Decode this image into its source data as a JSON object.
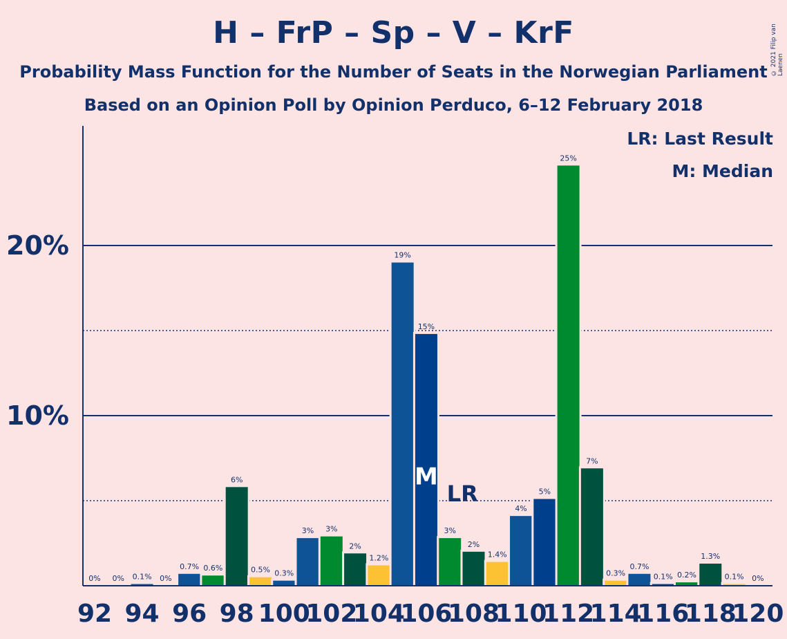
{
  "header": {
    "title": "H – FrP – Sp – V – KrF",
    "subtitle1": "Probability Mass Function for the Number of Seats in the Norwegian Parliament",
    "subtitle2": "Based on an Opinion Poll by Opinion Perduco, 6–12 February 2018",
    "copyright": "© 2021 Filip van Laenen"
  },
  "legend": {
    "lr": "LR: Last Result",
    "median": "M: Median"
  },
  "colors": {
    "background": "#fde4e4",
    "text": "#12306a",
    "H": "#0d5396",
    "FrP": "#003f8c",
    "Sp": "#008a30",
    "KrF": "#fdc233",
    "V": "#00523f"
  },
  "chart_data": {
    "type": "bar",
    "x": [
      92,
      93,
      94,
      95,
      96,
      97,
      98,
      99,
      100,
      101,
      102,
      103,
      104,
      105,
      106,
      107,
      108,
      109,
      110,
      111,
      112,
      113,
      114,
      115,
      116,
      117,
      118,
      119,
      120
    ],
    "values": [
      0,
      0,
      0.1,
      0,
      0.7,
      0.6,
      5.8,
      0.5,
      0.3,
      2.8,
      2.9,
      1.9,
      1.2,
      19.0,
      14.8,
      2.8,
      2.0,
      1.4,
      4.1,
      5.1,
      24.7,
      6.9,
      0.3,
      0.7,
      0.1,
      0.2,
      1.3,
      0.1,
      0
    ],
    "labels": [
      "0%",
      "0%",
      "0.1%",
      "0%",
      "0.7%",
      "0.6%",
      "6%",
      "0.5%",
      "0.3%",
      "3%",
      "3%",
      "2%",
      "1.2%",
      "19%",
      "15%",
      "3%",
      "2%",
      "1.4%",
      "4%",
      "5%",
      "25%",
      "7%",
      "0.3%",
      "0.7%",
      "0.1%",
      "0.2%",
      "1.3%",
      "0.1%",
      "0%"
    ],
    "bar_colors": [
      "H",
      "H",
      "H",
      "H",
      "H",
      "Sp",
      "V",
      "KrF",
      "H",
      "H",
      "Sp",
      "V",
      "KrF",
      "H",
      "FrP",
      "Sp",
      "V",
      "KrF",
      "H",
      "FrP",
      "Sp",
      "V",
      "KrF",
      "H",
      "FrP",
      "Sp",
      "V",
      "KrF",
      "H"
    ],
    "x_ticks": [
      92,
      94,
      96,
      98,
      100,
      102,
      104,
      106,
      108,
      110,
      112,
      114,
      116,
      118,
      120
    ],
    "y_ticks": [
      10,
      20
    ],
    "y_tick_labels": [
      "10%",
      "20%"
    ],
    "ylim": [
      0,
      27
    ],
    "dotted_lines": [
      5,
      15
    ],
    "median": 106,
    "median_marker": "M",
    "last_result": 107,
    "last_result_marker": "LR"
  }
}
